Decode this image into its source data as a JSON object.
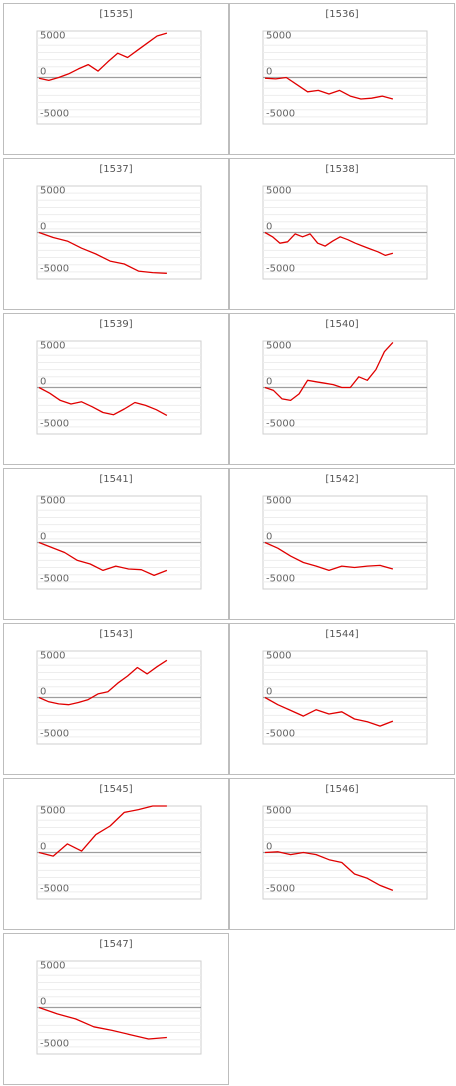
{
  "page": {
    "title": ""
  },
  "chart_data": [
    {
      "type": "line",
      "title": "[1535]",
      "ytick_labels": [
        "5000",
        "0",
        "-5000"
      ],
      "ylim": [
        -6500,
        6500
      ],
      "series": [
        {
          "name": "",
          "color": "#e00000",
          "values": [
            -100,
            -400,
            0,
            500,
            1200,
            1800,
            900,
            2200,
            3400,
            2800,
            3800,
            4800,
            5800,
            6200
          ]
        }
      ]
    },
    {
      "type": "line",
      "title": "[1536]",
      "ytick_labels": [
        "5000",
        "0",
        "-5000"
      ],
      "ylim": [
        -6500,
        6500
      ],
      "series": [
        {
          "name": "",
          "color": "#e00000",
          "values": [
            -100,
            -200,
            0,
            -1000,
            -2000,
            -1800,
            -2300,
            -1800,
            -2600,
            -3000,
            -2900,
            -2600,
            -3000
          ]
        }
      ]
    },
    {
      "type": "line",
      "title": "[1537]",
      "ytick_labels": [
        "5000",
        "0",
        "-5000"
      ],
      "ylim": [
        -6500,
        6500
      ],
      "series": [
        {
          "name": "",
          "color": "#e00000",
          "values": [
            0,
            -700,
            -1200,
            -2200,
            -3000,
            -4000,
            -4400,
            -5400,
            -5600,
            -5700
          ]
        }
      ]
    },
    {
      "type": "line",
      "title": "[1538]",
      "ytick_labels": [
        "5000",
        "0",
        "-5000"
      ],
      "ylim": [
        -6500,
        6500
      ],
      "series": [
        {
          "name": "",
          "color": "#e00000",
          "values": [
            0,
            -600,
            -1500,
            -1300,
            -200,
            -600,
            -200,
            -1500,
            -1900,
            -1200,
            -600,
            -1000,
            -1500,
            -1900,
            -2300,
            -2700,
            -3200,
            -2900
          ]
        }
      ]
    },
    {
      "type": "line",
      "title": "[1539]",
      "ytick_labels": [
        "5000",
        "0",
        "-5000"
      ],
      "ylim": [
        -6500,
        6500
      ],
      "series": [
        {
          "name": "",
          "color": "#e00000",
          "values": [
            0,
            -800,
            -1800,
            -2300,
            -2000,
            -2700,
            -3500,
            -3800,
            -3000,
            -2100,
            -2500,
            -3100,
            -3900
          ]
        }
      ]
    },
    {
      "type": "line",
      "title": "[1540]",
      "ytick_labels": [
        "5000",
        "0",
        "-5000"
      ],
      "ylim": [
        -6500,
        6500
      ],
      "series": [
        {
          "name": "",
          "color": "#e00000",
          "values": [
            0,
            -400,
            -1600,
            -1800,
            -900,
            1000,
            800,
            600,
            400,
            0,
            0,
            1500,
            1000,
            2500,
            5000,
            6300
          ]
        }
      ]
    },
    {
      "type": "line",
      "title": "[1541]",
      "ytick_labels": [
        "5000",
        "0",
        "-5000"
      ],
      "ylim": [
        -6500,
        6500
      ],
      "series": [
        {
          "name": "",
          "color": "#e00000",
          "values": [
            0,
            -700,
            -1400,
            -2500,
            -3000,
            -3900,
            -3300,
            -3700,
            -3800,
            -4600,
            -3900
          ]
        }
      ]
    },
    {
      "type": "line",
      "title": "[1542]",
      "ytick_labels": [
        "5000",
        "0",
        "-5000"
      ],
      "ylim": [
        -6500,
        6500
      ],
      "series": [
        {
          "name": "",
          "color": "#e00000",
          "values": [
            0,
            -800,
            -1900,
            -2800,
            -3300,
            -3900,
            -3300,
            -3500,
            -3300,
            -3200,
            -3700
          ]
        }
      ]
    },
    {
      "type": "line",
      "title": "[1543]",
      "ytick_labels": [
        "5000",
        "0",
        "-5000"
      ],
      "ylim": [
        -6500,
        6500
      ],
      "series": [
        {
          "name": "",
          "color": "#e00000",
          "values": [
            0,
            -600,
            -900,
            -1000,
            -700,
            -300,
            500,
            800,
            2000,
            3000,
            4200,
            3300,
            4300,
            5200
          ]
        }
      ]
    },
    {
      "type": "line",
      "title": "[1544]",
      "ytick_labels": [
        "5000",
        "0",
        "-5000"
      ],
      "ylim": [
        -6500,
        6500
      ],
      "series": [
        {
          "name": "",
          "color": "#e00000",
          "values": [
            0,
            -1000,
            -1800,
            -2600,
            -1700,
            -2300,
            -2000,
            -3000,
            -3400,
            -4000,
            -3300
          ]
        }
      ]
    },
    {
      "type": "line",
      "title": "[1545]",
      "ytick_labels": [
        "5000",
        "0",
        "-5000"
      ],
      "ylim": [
        -6500,
        6500
      ],
      "series": [
        {
          "name": "",
          "color": "#e00000",
          "values": [
            0,
            -500,
            1200,
            200,
            2500,
            3700,
            5600,
            6000,
            6500,
            6800
          ]
        }
      ]
    },
    {
      "type": "line",
      "title": "[1546]",
      "ytick_labels": [
        "5000",
        "0",
        "-5000"
      ],
      "ylim": [
        -6500,
        6500
      ],
      "series": [
        {
          "name": "",
          "color": "#e00000",
          "values": [
            0,
            100,
            -300,
            0,
            -300,
            -1000,
            -1400,
            -3000,
            -3600,
            -4600,
            -5300
          ]
        }
      ]
    },
    {
      "type": "line",
      "title": "[1547]",
      "ytick_labels": [
        "5000",
        "0",
        "-5000"
      ],
      "ylim": [
        -6500,
        6500
      ],
      "series": [
        {
          "name": "",
          "color": "#e00000",
          "values": [
            0,
            -900,
            -1600,
            -2700,
            -3200,
            -3800,
            -4400,
            -4200
          ]
        }
      ]
    }
  ]
}
